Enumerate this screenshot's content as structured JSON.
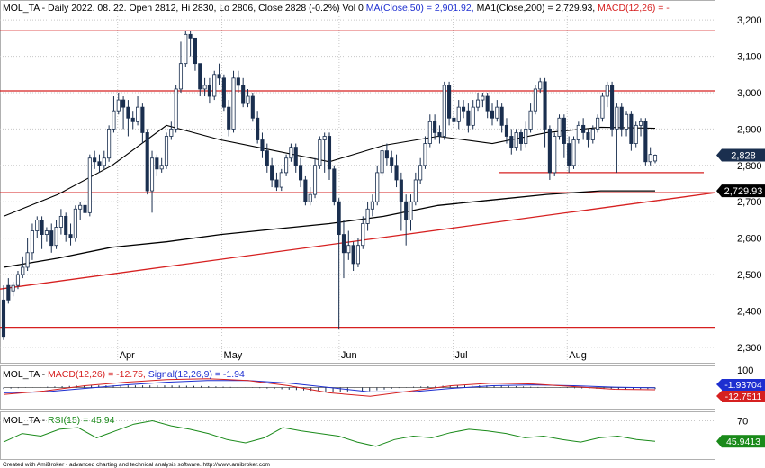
{
  "header": {
    "main_prefix": "MOL_TA - Daily 2022. 08. 22. Open 2812, Hi 2830, Lo 2806, Close 2828 (-0.2%) Vol 0 ",
    "ma50_label": "MA(Close,50) = 2,901.92, ",
    "ma200_label": "MA1(Close,200) = 2,729.93, ",
    "macd_label": "MACD(12,26) = -",
    "macd_panel_prefix": "MOL_TA - ",
    "macd_panel_macd": "MACD(12,26) = -12.75, ",
    "macd_panel_signal": "Signal(12,26,9) = -1.94",
    "rsi_panel_prefix": "MOL_TA - ",
    "rsi_panel_rsi": "RSI(15) = 45.94"
  },
  "footer": {
    "credit": "Created with AmiBroker - advanced charting and technical analysis software. http://www.amibroker.com"
  },
  "colors": {
    "candle_up": "#ffffff",
    "candle_down": "#1a2f4f",
    "candle_outline": "#1a2f4f",
    "ma50": "#000000",
    "ma200": "#000000",
    "level_lines": "#d62020",
    "trendline": "#d62020",
    "macd_line": "#1e2fd0",
    "signal_line": "#d62020",
    "rsi_line": "#1a8a1a",
    "grid": "#c8c8c8",
    "badge_close": "#1a2f4f",
    "badge_ma": "#000000",
    "badge_macd": "#1e2fd0",
    "badge_signal": "#d62020",
    "badge_rsi": "#1a8a1a"
  },
  "chart_data": [
    {
      "type": "candlestick",
      "title": "MOL_TA - Daily",
      "x_axis_labels": [
        "Apr",
        "May",
        "Jun",
        "Jul",
        "Aug"
      ],
      "y_ticks": [
        2300,
        2400,
        2500,
        2600,
        2700,
        2800,
        2900,
        3000,
        3100,
        3200
      ],
      "y_tick_labels": [
        "2,300",
        "2,400",
        "2,500",
        "2,600",
        "2,700",
        "2,800",
        "2,900",
        "3,000",
        "3,100",
        "3,200"
      ],
      "ylim": [
        2265,
        3240
      ],
      "last_candle": {
        "open": 2812,
        "high": 2830,
        "low": 2806,
        "close": 2828
      },
      "badges": [
        {
          "label": "2,828",
          "value": 2828,
          "kind": "close"
        },
        {
          "label": "2,729.93",
          "value": 2729.93,
          "kind": "ma"
        }
      ],
      "horizontal_levels": [
        3170,
        3005,
        2725,
        2355
      ],
      "short_support_level": 2780,
      "trendline": {
        "start": 2460,
        "end": 2725
      },
      "ma50": [
        2660,
        2720,
        2800,
        2910,
        2870,
        2840,
        2810,
        2855,
        2880,
        2860,
        2890,
        2905,
        2902
      ],
      "ma200": [
        2520,
        2545,
        2575,
        2590,
        2610,
        2625,
        2640,
        2660,
        2690,
        2705,
        2720,
        2730,
        2730
      ],
      "candles": [
        [
          2430,
          2330,
          2470,
          2320
        ],
        [
          2470,
          2430,
          2490,
          2420
        ],
        [
          2455,
          2470,
          2480,
          2440
        ],
        [
          2470,
          2500,
          2510,
          2460
        ],
        [
          2500,
          2520,
          2550,
          2490
        ],
        [
          2520,
          2560,
          2600,
          2510
        ],
        [
          2560,
          2620,
          2640,
          2540
        ],
        [
          2620,
          2650,
          2660,
          2600
        ],
        [
          2650,
          2610,
          2660,
          2570
        ],
        [
          2610,
          2620,
          2630,
          2590
        ],
        [
          2620,
          2580,
          2640,
          2560
        ],
        [
          2580,
          2630,
          2650,
          2570
        ],
        [
          2630,
          2660,
          2680,
          2610
        ],
        [
          2660,
          2610,
          2670,
          2590
        ],
        [
          2610,
          2600,
          2640,
          2580
        ],
        [
          2600,
          2680,
          2690,
          2590
        ],
        [
          2680,
          2690,
          2700,
          2650
        ],
        [
          2690,
          2670,
          2700,
          2650
        ],
        [
          2670,
          2820,
          2830,
          2660
        ],
        [
          2820,
          2810,
          2840,
          2790
        ],
        [
          2810,
          2800,
          2830,
          2780
        ],
        [
          2800,
          2820,
          2840,
          2790
        ],
        [
          2820,
          2900,
          2910,
          2810
        ],
        [
          2900,
          2950,
          2990,
          2890
        ],
        [
          2950,
          2980,
          3000,
          2940
        ],
        [
          2980,
          2960,
          2990,
          2900
        ],
        [
          2960,
          2930,
          2980,
          2880
        ],
        [
          2930,
          2920,
          2950,
          2900
        ],
        [
          2920,
          2960,
          2990,
          2910
        ],
        [
          2960,
          2890,
          2970,
          2860
        ],
        [
          2890,
          2730,
          2900,
          2720
        ],
        [
          2730,
          2820,
          2840,
          2670
        ],
        [
          2820,
          2790,
          2830,
          2770
        ],
        [
          2790,
          2800,
          2820,
          2780
        ],
        [
          2800,
          2880,
          2890,
          2790
        ],
        [
          2880,
          2900,
          2920,
          2870
        ],
        [
          2900,
          3010,
          3020,
          2890
        ],
        [
          3010,
          3080,
          3140,
          3000
        ],
        [
          3080,
          3160,
          3170,
          3070
        ],
        [
          3160,
          3150,
          3170,
          3100
        ],
        [
          3150,
          3080,
          3140,
          3060
        ],
        [
          3080,
          3010,
          3080,
          2990
        ],
        [
          3010,
          3020,
          3040,
          2990
        ],
        [
          3020,
          2990,
          3040,
          2970
        ],
        [
          2990,
          3050,
          3060,
          2980
        ],
        [
          3050,
          3040,
          3080,
          3020
        ],
        [
          3040,
          2960,
          3050,
          2950
        ],
        [
          2960,
          2900,
          2980,
          2880
        ],
        [
          2900,
          3040,
          3060,
          2890
        ],
        [
          3040,
          3020,
          3060,
          3000
        ],
        [
          3020,
          2970,
          3040,
          2960
        ],
        [
          2970,
          2990,
          3010,
          2960
        ],
        [
          2990,
          2930,
          3000,
          2920
        ],
        [
          2930,
          2870,
          2950,
          2860
        ],
        [
          2870,
          2840,
          2890,
          2820
        ],
        [
          2840,
          2800,
          2860,
          2780
        ],
        [
          2800,
          2760,
          2820,
          2740
        ],
        [
          2760,
          2740,
          2780,
          2730
        ],
        [
          2740,
          2780,
          2790,
          2730
        ],
        [
          2780,
          2820,
          2830,
          2770
        ],
        [
          2820,
          2850,
          2860,
          2810
        ],
        [
          2850,
          2800,
          2860,
          2780
        ],
        [
          2800,
          2760,
          2820,
          2740
        ],
        [
          2760,
          2700,
          2770,
          2690
        ],
        [
          2700,
          2720,
          2740,
          2690
        ],
        [
          2720,
          2800,
          2820,
          2710
        ],
        [
          2800,
          2870,
          2880,
          2790
        ],
        [
          2870,
          2880,
          2890,
          2780
        ],
        [
          2880,
          2790,
          2890,
          2760
        ],
        [
          2790,
          2700,
          2800,
          2690
        ],
        [
          2700,
          2610,
          2710,
          2350
        ],
        [
          2610,
          2560,
          2650,
          2490
        ],
        [
          2560,
          2580,
          2620,
          2540
        ],
        [
          2580,
          2530,
          2590,
          2510
        ],
        [
          2530,
          2580,
          2600,
          2520
        ],
        [
          2580,
          2640,
          2660,
          2570
        ],
        [
          2640,
          2680,
          2700,
          2620
        ],
        [
          2680,
          2700,
          2720,
          2660
        ],
        [
          2700,
          2780,
          2800,
          2690
        ],
        [
          2780,
          2840,
          2860,
          2770
        ],
        [
          2840,
          2820,
          2860,
          2800
        ],
        [
          2820,
          2800,
          2840,
          2780
        ],
        [
          2800,
          2760,
          2830,
          2740
        ],
        [
          2760,
          2700,
          2780,
          2620
        ],
        [
          2700,
          2650,
          2720,
          2580
        ],
        [
          2650,
          2700,
          2720,
          2620
        ],
        [
          2700,
          2760,
          2780,
          2690
        ],
        [
          2760,
          2800,
          2820,
          2750
        ],
        [
          2800,
          2860,
          2880,
          2790
        ],
        [
          2860,
          2920,
          2940,
          2850
        ],
        [
          2920,
          2890,
          2940,
          2870
        ],
        [
          2890,
          2880,
          2910,
          2860
        ],
        [
          2880,
          3020,
          3030,
          2870
        ],
        [
          3020,
          2930,
          3030,
          2910
        ],
        [
          2930,
          2920,
          2950,
          2900
        ],
        [
          2920,
          2960,
          2980,
          2900
        ],
        [
          2960,
          2950,
          2980,
          2930
        ],
        [
          2950,
          2910,
          2970,
          2890
        ],
        [
          2910,
          2960,
          2980,
          2900
        ],
        [
          2960,
          2980,
          3000,
          2950
        ],
        [
          2980,
          2990,
          3000,
          2960
        ],
        [
          2990,
          2950,
          3000,
          2930
        ],
        [
          2950,
          2930,
          2970,
          2910
        ],
        [
          2930,
          2960,
          2980,
          2920
        ],
        [
          2960,
          2910,
          2970,
          2890
        ],
        [
          2910,
          2880,
          2930,
          2860
        ],
        [
          2880,
          2850,
          2900,
          2830
        ],
        [
          2850,
          2890,
          2900,
          2840
        ],
        [
          2890,
          2860,
          2900,
          2840
        ],
        [
          2860,
          2900,
          2920,
          2850
        ],
        [
          2900,
          2950,
          2970,
          2890
        ],
        [
          2950,
          3010,
          3020,
          2940
        ],
        [
          3010,
          3030,
          3040,
          3000
        ],
        [
          3030,
          2900,
          3040,
          2850
        ],
        [
          2900,
          2780,
          2910,
          2760
        ],
        [
          2780,
          2880,
          2890,
          2770
        ],
        [
          2880,
          2930,
          2940,
          2870
        ],
        [
          2930,
          2860,
          2940,
          2820
        ],
        [
          2860,
          2800,
          2880,
          2780
        ],
        [
          2800,
          2870,
          2880,
          2790
        ],
        [
          2870,
          2910,
          2920,
          2860
        ],
        [
          2910,
          2890,
          2930,
          2870
        ],
        [
          2890,
          2870,
          2900,
          2850
        ],
        [
          2870,
          2900,
          2910,
          2860
        ],
        [
          2900,
          2930,
          2940,
          2890
        ],
        [
          2930,
          2990,
          3000,
          2920
        ],
        [
          2990,
          3020,
          3030,
          2960
        ],
        [
          3020,
          2900,
          3030,
          2880
        ],
        [
          2900,
          2960,
          2970,
          2780
        ],
        [
          2960,
          2900,
          2970,
          2880
        ],
        [
          2900,
          2940,
          2950,
          2880
        ],
        [
          2940,
          2860,
          2950,
          2840
        ],
        [
          2860,
          2910,
          2920,
          2850
        ],
        [
          2910,
          2920,
          2930,
          2880
        ],
        [
          2920,
          2810,
          2930,
          2800
        ],
        [
          2810,
          2830,
          2850,
          2800
        ],
        [
          2812,
          2828,
          2830,
          2806
        ]
      ]
    },
    {
      "type": "line",
      "title": "MACD(12,26) / Signal(12,26,9)",
      "y_ticks": [
        100
      ],
      "y_tick_labels": [
        "100"
      ],
      "ylim": [
        -120,
        120
      ],
      "badges": [
        {
          "label": "-1.93704",
          "value": -1.93704,
          "kind": "signal_line"
        },
        {
          "label": "-12.7511",
          "value": -12.7511,
          "kind": "macd_line"
        }
      ],
      "series": [
        {
          "name": "MACD(12,26)",
          "values": [
            -40,
            -20,
            10,
            30,
            45,
            50,
            40,
            10,
            -30,
            -50,
            -20,
            10,
            25,
            20,
            5,
            -10,
            -12.75
          ]
        },
        {
          "name": "Signal(12,26,9)",
          "values": [
            -30,
            -25,
            -5,
            15,
            30,
            40,
            40,
            25,
            0,
            -25,
            -25,
            -5,
            10,
            15,
            10,
            2,
            -1.94
          ]
        }
      ]
    },
    {
      "type": "line",
      "title": "RSI(15)",
      "y_ticks": [
        70
      ],
      "y_tick_labels": [
        "70"
      ],
      "ylim": [
        25,
        80
      ],
      "badges": [
        {
          "label": "45.9413",
          "value": 45.9413,
          "kind": "rsi_line"
        }
      ],
      "series": [
        {
          "name": "RSI(15)",
          "values": [
            45,
            55,
            52,
            60,
            62,
            50,
            58,
            66,
            70,
            64,
            60,
            55,
            48,
            44,
            50,
            62,
            58,
            55,
            52,
            45,
            40,
            48,
            52,
            50,
            56,
            60,
            58,
            55,
            50,
            52,
            48,
            45,
            50,
            52,
            48,
            45.94
          ]
        }
      ]
    }
  ]
}
